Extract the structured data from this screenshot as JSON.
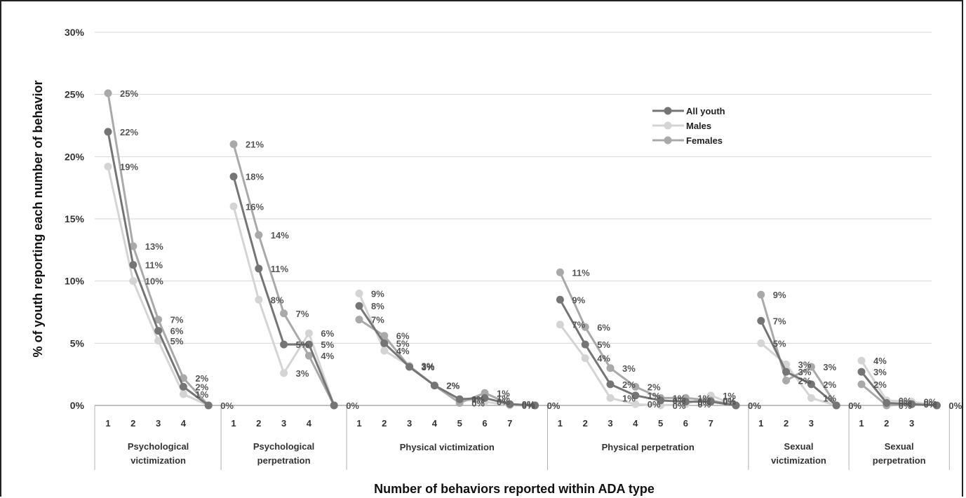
{
  "chart_data": {
    "type": "line",
    "title": "",
    "xlabel": "Number of behaviors reported within ADA type",
    "ylabel": "% of youth reporting each number of behavior",
    "ylim": [
      0,
      30
    ],
    "yticks": [
      "0%",
      "5%",
      "10%",
      "15%",
      "20%",
      "25%",
      "30%"
    ],
    "grid": true,
    "legend_position": "top-right",
    "groups": [
      {
        "name": "Psychological victimization",
        "name_lines": [
          "Psychological",
          "victimization"
        ],
        "ticks": [
          "1",
          "2",
          "3",
          "4",
          ""
        ]
      },
      {
        "name": "Psychological perpetration",
        "name_lines": [
          "Psychological",
          "perpetration"
        ],
        "ticks": [
          "1",
          "2",
          "3",
          "4",
          ""
        ]
      },
      {
        "name": "Physical victimization",
        "name_lines": [
          "Physical victimization"
        ],
        "ticks": [
          "1",
          "2",
          "3",
          "4",
          "5",
          "6",
          "7",
          ""
        ]
      },
      {
        "name": "Physical perpetration",
        "name_lines": [
          "Physical perpetration"
        ],
        "ticks": [
          "1",
          "2",
          "3",
          "4",
          "5",
          "6",
          "7",
          ""
        ]
      },
      {
        "name": "Sexual victimization",
        "name_lines": [
          "Sexual",
          "victimization"
        ],
        "ticks": [
          "1",
          "2",
          "3",
          ""
        ]
      },
      {
        "name": "Sexual perpetration",
        "name_lines": [
          "Sexual",
          "perpetration"
        ],
        "ticks": [
          "1",
          "2",
          "3",
          ""
        ]
      }
    ],
    "series": [
      {
        "name": "All youth",
        "color": "#757575",
        "values": [
          [
            22,
            11.3,
            6,
            1.5,
            0
          ],
          [
            18.4,
            11,
            4.9,
            4.9,
            0
          ],
          [
            8,
            5,
            3.1,
            1.6,
            0.5,
            0.6,
            0.1,
            0
          ],
          [
            8.5,
            4.9,
            1.7,
            0.8,
            0.4,
            0.3,
            0.3,
            0
          ],
          [
            6.8,
            2.7,
            1.7,
            0
          ],
          [
            2.7,
            0.2,
            0.1,
            0
          ]
        ],
        "labels": [
          [
            "22%",
            "11%",
            "6%",
            "2%",
            ""
          ],
          [
            "18%",
            "11%",
            "5%",
            "5%",
            ""
          ],
          [
            "8%",
            "5%",
            "3%",
            "2%",
            "1%",
            "1%",
            "0%",
            ""
          ],
          [
            "9%",
            "5%",
            "2%",
            "1%",
            "0%",
            "0%",
            "0%",
            ""
          ],
          [
            "7%",
            "3%",
            "2%",
            ""
          ],
          [
            "3%",
            "0%",
            "0%",
            ""
          ]
        ]
      },
      {
        "name": "Males",
        "color": "#d4d4d4",
        "values": [
          [
            19.2,
            10,
            5.2,
            0.9,
            0
          ],
          [
            16,
            8.5,
            2.6,
            5.8,
            0
          ],
          [
            9,
            4.4,
            3.2,
            1.6,
            0.5,
            0.3,
            0,
            0
          ],
          [
            6.5,
            3.8,
            0.6,
            0.1,
            0,
            0.1,
            0.8,
            0
          ],
          [
            5,
            3.3,
            0.6,
            0
          ],
          [
            3.6,
            0.4,
            0.3,
            0
          ]
        ],
        "labels": [
          [
            "19%",
            "10%",
            "5%",
            "1%",
            "0%"
          ],
          [
            "16%",
            "8%",
            "3%",
            "6%",
            ""
          ],
          [
            "9%",
            "4%",
            "3%",
            "2%",
            "0%",
            "0%",
            "0%",
            "0%"
          ],
          [
            "7%",
            "4%",
            "1%",
            "0%",
            "0%",
            "0%",
            "1%",
            "0%"
          ],
          [
            "5%",
            "3%",
            "1%",
            "0%"
          ],
          [
            "4%",
            "0%",
            "0%",
            "0%"
          ]
        ]
      },
      {
        "name": "Females",
        "color": "#a9a9a9",
        "values": [
          [
            25.1,
            12.8,
            6.9,
            2.2,
            0
          ],
          [
            21,
            13.7,
            7.4,
            4,
            0
          ],
          [
            6.9,
            5.6,
            3.1,
            1.6,
            0.2,
            1,
            0.1,
            0
          ],
          [
            10.7,
            6.3,
            3,
            1.5,
            0.6,
            0.6,
            0.4,
            0
          ],
          [
            8.9,
            2,
            3.1,
            0
          ],
          [
            1.7,
            0,
            0.1,
            0
          ]
        ],
        "labels": [
          [
            "25%",
            "13%",
            "7%",
            "2%",
            ""
          ],
          [
            "21%",
            "14%",
            "7%",
            "4%",
            "0%"
          ],
          [
            "7%",
            "6%",
            "3%",
            "2%",
            "0%",
            "1%",
            "0%",
            "0%"
          ],
          [
            "11%",
            "6%",
            "3%",
            "2%",
            "1%",
            "1%",
            "0%",
            "0%"
          ],
          [
            "9%",
            "2%",
            "3%",
            "0%"
          ],
          [
            "2%",
            "0%",
            "0%",
            "0%"
          ]
        ]
      }
    ]
  }
}
